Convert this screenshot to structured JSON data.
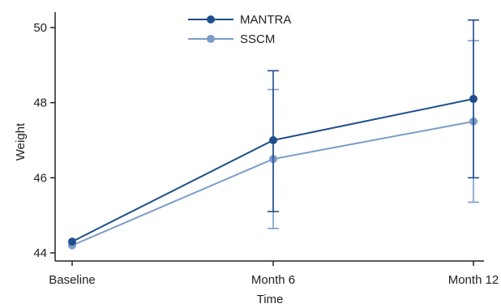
{
  "chart_data": {
    "type": "line",
    "title": "",
    "xlabel": "Time",
    "ylabel": "Weight",
    "categories": [
      "Baseline",
      "Month 6",
      "Month 12"
    ],
    "ylim": [
      43.8,
      50.4
    ],
    "yticks": [
      44,
      46,
      48,
      50
    ],
    "grid": false,
    "legend_position": "top-center",
    "series": [
      {
        "name": "MANTRA",
        "color": "#1f4e8c",
        "values": [
          44.3,
          47.0,
          48.1
        ],
        "error_low": [
          null,
          45.1,
          46.0
        ],
        "error_high": [
          null,
          48.85,
          50.2
        ]
      },
      {
        "name": "SSCM",
        "color": "#7a9cc6",
        "values": [
          44.2,
          46.5,
          47.5
        ],
        "error_low": [
          null,
          44.65,
          45.35
        ],
        "error_high": [
          null,
          48.35,
          49.65
        ]
      }
    ]
  }
}
